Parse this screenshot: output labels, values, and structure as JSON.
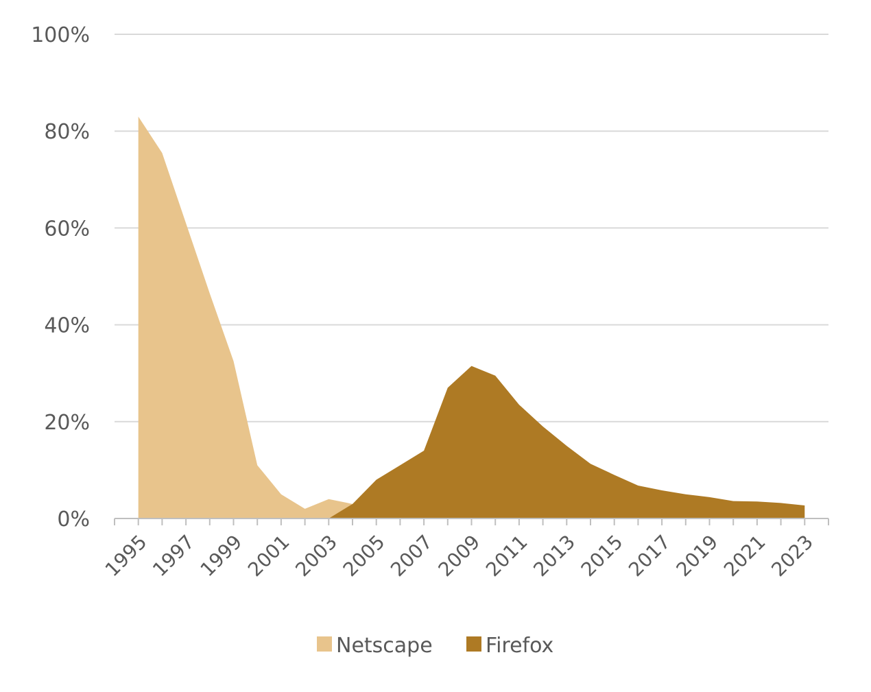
{
  "chart_data": {
    "type": "area",
    "title": "",
    "xlabel": "",
    "ylabel": "",
    "x": [
      1995,
      1996,
      1997,
      1998,
      1999,
      2000,
      2001,
      2002,
      2003,
      2004,
      2005,
      2006,
      2007,
      2008,
      2009,
      2010,
      2011,
      2012,
      2013,
      2014,
      2015,
      2016,
      2017,
      2018,
      2019,
      2020,
      2021,
      2022,
      2023
    ],
    "x_tick_labels": [
      "1995",
      "1997",
      "1999",
      "2001",
      "2003",
      "2005",
      "2007",
      "2009",
      "2011",
      "2013",
      "2015",
      "2017",
      "2019",
      "2021",
      "2023"
    ],
    "y_tick_labels": [
      "0%",
      "20%",
      "40%",
      "60%",
      "80%",
      "100%"
    ],
    "ylim": [
      0,
      100
    ],
    "y_unit": "%",
    "grid": true,
    "legend_position": "bottom",
    "series": [
      {
        "name": "Netscape",
        "color": "#E8C48C",
        "values": [
          83,
          75.5,
          61,
          46.5,
          32.5,
          11,
          5,
          2,
          4,
          3,
          0,
          0,
          0,
          0,
          0,
          0,
          0,
          0,
          0,
          0,
          0,
          0,
          0,
          0,
          0,
          0,
          0,
          0,
          0
        ]
      },
      {
        "name": "Firefox",
        "color": "#AE7A24",
        "values": [
          0,
          0,
          0,
          0,
          0,
          0,
          0,
          0,
          0,
          3,
          8,
          11,
          14,
          27,
          31.5,
          29.5,
          23.5,
          19,
          15,
          11.3,
          9,
          6.8,
          5.8,
          5,
          4.4,
          3.6,
          3.5,
          3.2,
          2.7
        ]
      }
    ]
  }
}
